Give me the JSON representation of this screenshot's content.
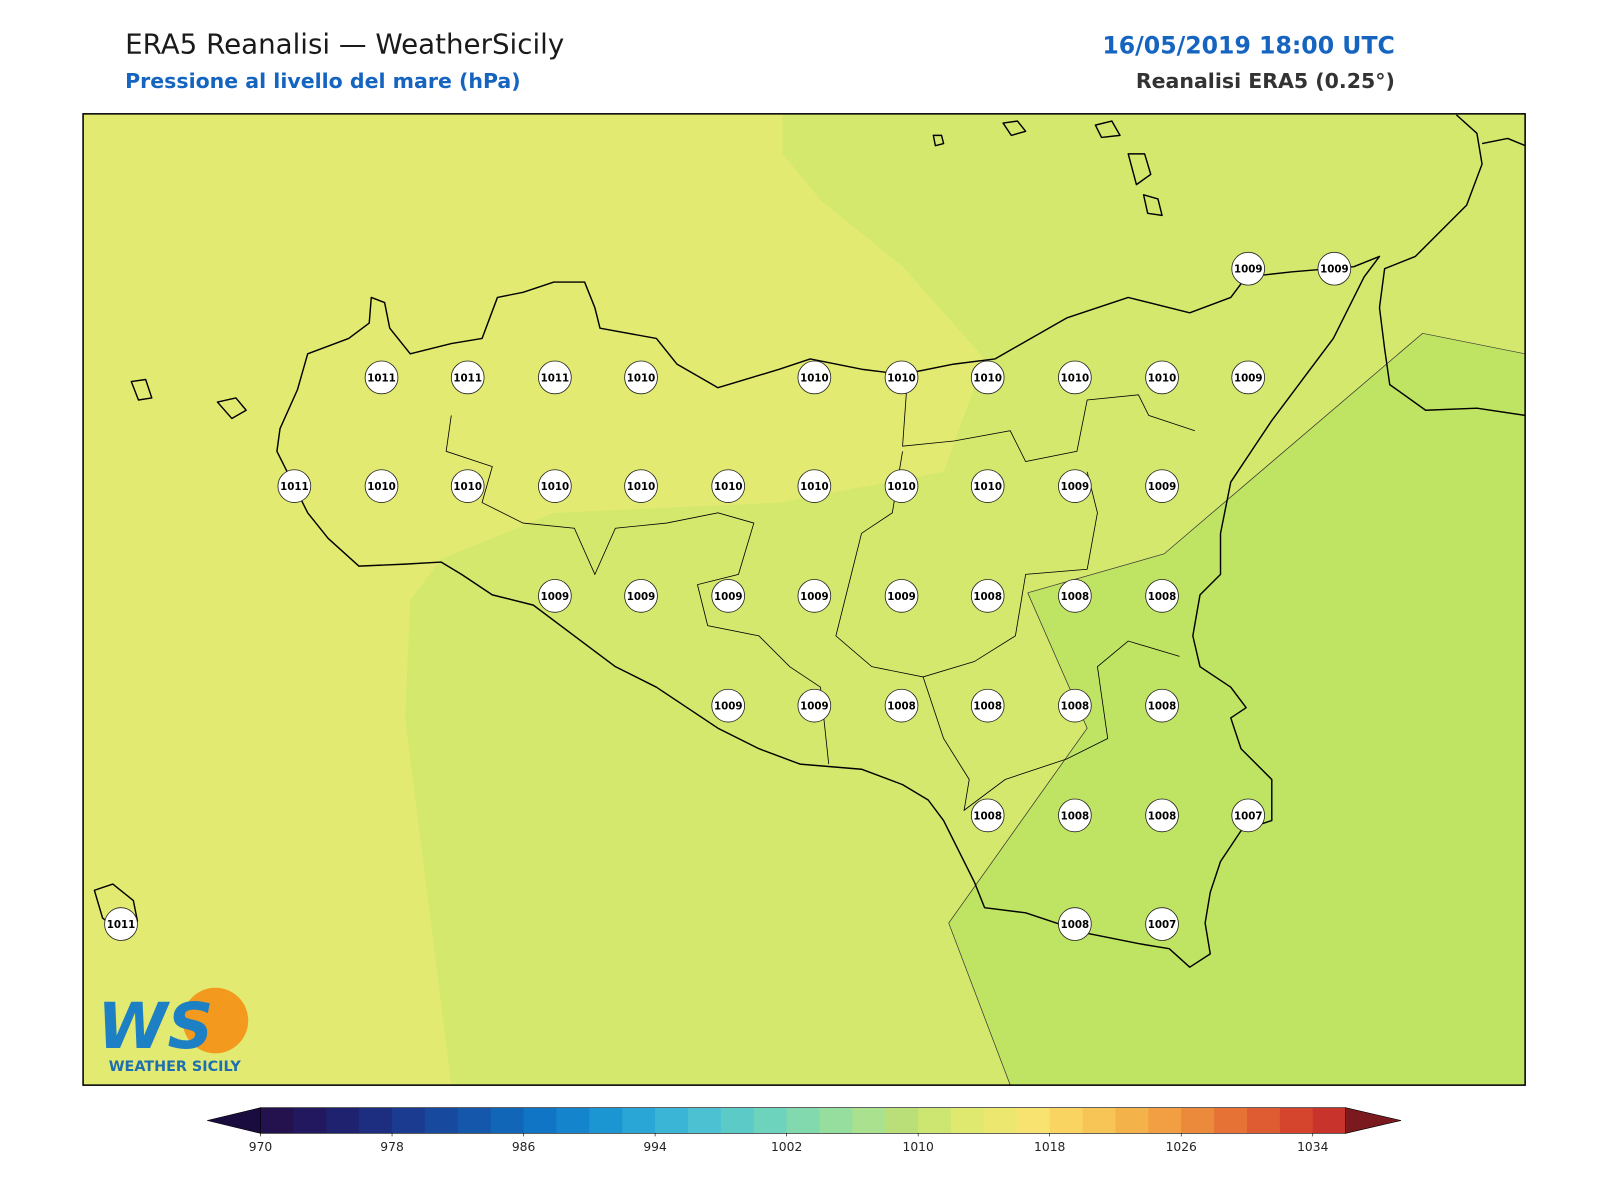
{
  "header": {
    "title": "ERA5 Reanalisi — WeatherSicily",
    "subtitle": "Pressione al livello del mare (hPa)",
    "datetime": "16/05/2019 18:00 UTC",
    "source": "Reanalisi ERA5 (0.25°)"
  },
  "logo": {
    "mark": "WS",
    "name": "WEATHER SICILY"
  },
  "stations": [
    {
      "value": 1009
    },
    {
      "value": 1009
    },
    {
      "value": 1011
    },
    {
      "value": 1011
    },
    {
      "value": 1011
    },
    {
      "value": 1010
    },
    {
      "value": 1010
    },
    {
      "value": 1010
    },
    {
      "value": 1010
    },
    {
      "value": 1010
    },
    {
      "value": 1010
    },
    {
      "value": 1009
    },
    {
      "value": 1011
    },
    {
      "value": 1010
    },
    {
      "value": 1010
    },
    {
      "value": 1010
    },
    {
      "value": 1010
    },
    {
      "value": 1010
    },
    {
      "value": 1010
    },
    {
      "value": 1010
    },
    {
      "value": 1010
    },
    {
      "value": 1009
    },
    {
      "value": 1009
    },
    {
      "value": 1009
    },
    {
      "value": 1009
    },
    {
      "value": 1009
    },
    {
      "value": 1009
    },
    {
      "value": 1009
    },
    {
      "value": 1008
    },
    {
      "value": 1008
    },
    {
      "value": 1008
    },
    {
      "value": 1009
    },
    {
      "value": 1009
    },
    {
      "value": 1008
    },
    {
      "value": 1008
    },
    {
      "value": 1008
    },
    {
      "value": 1008
    },
    {
      "value": 1008
    },
    {
      "value": 1008
    },
    {
      "value": 1008
    },
    {
      "value": 1007
    },
    {
      "value": 1011
    },
    {
      "value": 1008
    },
    {
      "value": 1007
    }
  ],
  "colorbar": {
    "range": [
      970,
      1036
    ],
    "step": 2,
    "ticks": [
      970,
      978,
      986,
      994,
      1002,
      1010,
      1018,
      1026,
      1034
    ],
    "under_color": "#1b0c3f",
    "over_color": "#7a1a1f",
    "colors": [
      "#24124f",
      "#211860",
      "#1f226f",
      "#1d2e80",
      "#1a3b90",
      "#17499e",
      "#1457ab",
      "#1166b8",
      "#1075c4",
      "#1485cd",
      "#1c96d3",
      "#2aa6d6",
      "#3ab5d6",
      "#4bc1d1",
      "#5ccbc8",
      "#6ed3bc",
      "#82d9ae",
      "#96de9e",
      "#a9e18f",
      "#badf79",
      "#cde571",
      "#dfe96f",
      "#ece86f",
      "#f8e270",
      "#f9d461",
      "#f7c456",
      "#f4b24b",
      "#f19f42",
      "#ec8a3b",
      "#e67335",
      "#df5b31",
      "#d5452e",
      "#c8332c"
    ]
  }
}
